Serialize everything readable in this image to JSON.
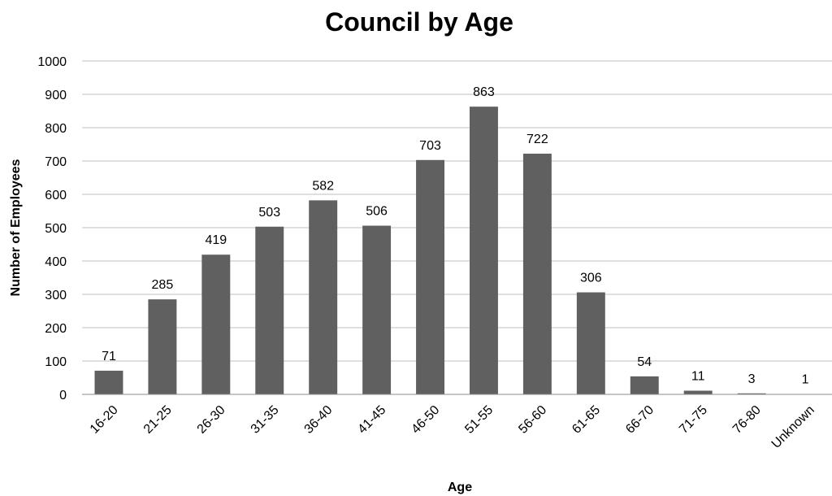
{
  "chart_data": {
    "type": "bar",
    "title": "Council by Age",
    "xlabel": "Age",
    "ylabel": "Number of Employees",
    "categories": [
      "16-20",
      "21-25",
      "26-30",
      "31-35",
      "36-40",
      "41-45",
      "46-50",
      "51-55",
      "56-60",
      "61-65",
      "66-70",
      "71-75",
      "76-80",
      "Unknown"
    ],
    "values": [
      71,
      285,
      419,
      503,
      582,
      506,
      703,
      863,
      722,
      306,
      54,
      11,
      3,
      1
    ],
    "data_labels": [
      "71",
      "285",
      "419",
      "503",
      "582",
      "506",
      "703",
      "863",
      "722",
      "306",
      "54",
      "11",
      "3",
      "1"
    ],
    "ylim": [
      0,
      1000
    ],
    "yticks": [
      0,
      100,
      200,
      300,
      400,
      500,
      600,
      700,
      800,
      900,
      1000
    ],
    "ytick_labels": [
      "0",
      "100",
      "200",
      "300",
      "400",
      "500",
      "600",
      "700",
      "800",
      "900",
      "1000"
    ],
    "grid": true,
    "legend": "none",
    "bar_color": "#606060"
  }
}
